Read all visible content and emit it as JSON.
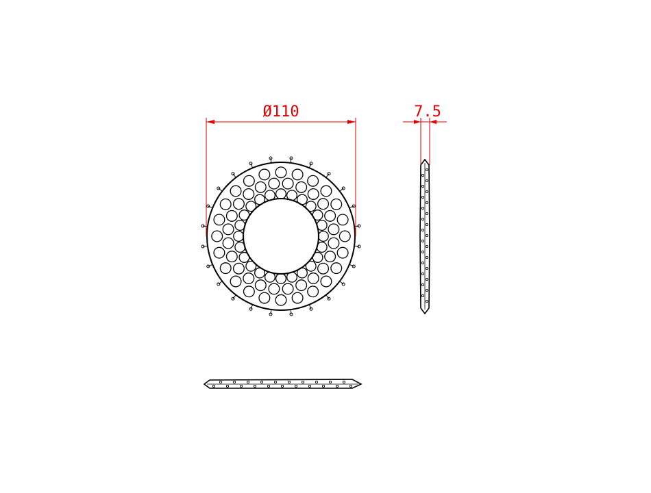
{
  "drawing": {
    "dimensions": [
      {
        "name": "outer-diameter",
        "label": "Ø110"
      },
      {
        "name": "thickness",
        "label": "7.5"
      }
    ],
    "colors": {
      "outline": "#000000",
      "dimension": "#e00000",
      "background": "#ffffff"
    },
    "part": {
      "outer_diameter": 110,
      "thickness": 7.5,
      "hole_rings": [
        {
          "count": 24,
          "radius_mm": 47.5,
          "diameter_mm": 8.0
        },
        {
          "count": 24,
          "radius_mm": 39.5,
          "diameter_mm": 8.0
        },
        {
          "count": 24,
          "radius_mm": 31.5,
          "diameter_mm": 7.5
        }
      ],
      "teeth": 24
    },
    "views": [
      "front-view",
      "side-view",
      "top-view"
    ]
  }
}
